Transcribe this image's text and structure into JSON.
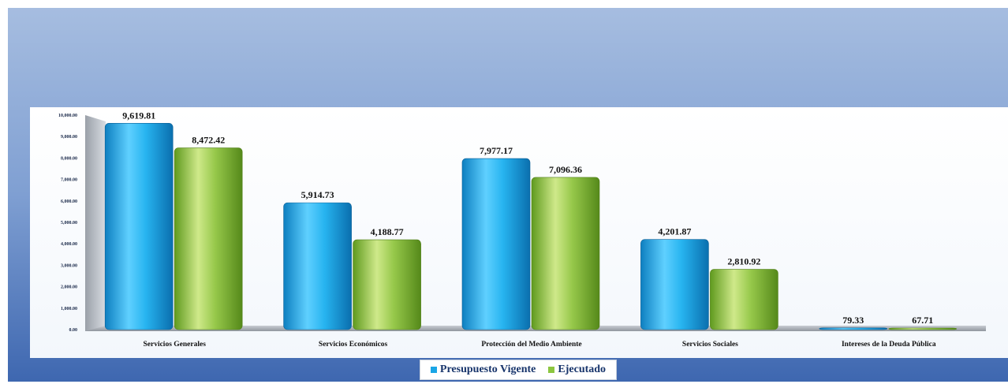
{
  "chart_data": {
    "type": "bar",
    "title": "",
    "xlabel": "",
    "ylabel": "",
    "ylim": [
      0,
      10000
    ],
    "yticks": [
      0,
      1000,
      2000,
      3000,
      4000,
      5000,
      6000,
      7000,
      8000,
      9000,
      10000
    ],
    "ytick_labels": [
      "0.00",
      "1,000.00",
      "2,000.00",
      "3,000.00",
      "4,000.00",
      "5,000.00",
      "6,000.00",
      "7,000.00",
      "8,000.00",
      "9,000.00",
      "10,000.00"
    ],
    "categories": [
      "Servicios  Generales",
      "Servicios Económicos",
      "Protección del Medio Ambiente",
      "Servicios Sociales",
      "Intereses de la Deuda Pública"
    ],
    "series": [
      {
        "name": "Presupuesto Vigente",
        "color": "#1aa6e6",
        "values": [
          9619.81,
          5914.73,
          7977.17,
          4201.87,
          79.33
        ],
        "labels": [
          "9,619.81",
          "5,914.73",
          "7,977.17",
          "4,201.87",
          "79.33"
        ]
      },
      {
        "name": "Ejecutado",
        "color": "#8cc63f",
        "values": [
          8472.42,
          4188.77,
          7096.36,
          2810.92,
          67.71
        ],
        "labels": [
          "8,472.42",
          "4,188.77",
          "7,096.36",
          "2,810.92",
          "67.71"
        ]
      }
    ],
    "grid": false,
    "legend_position": "bottom-center"
  },
  "legend": {
    "items": [
      {
        "label": "Presupuesto Vigente",
        "color": "#1aa6e6"
      },
      {
        "label": "Ejecutado",
        "color": "#8cc63f"
      }
    ]
  }
}
